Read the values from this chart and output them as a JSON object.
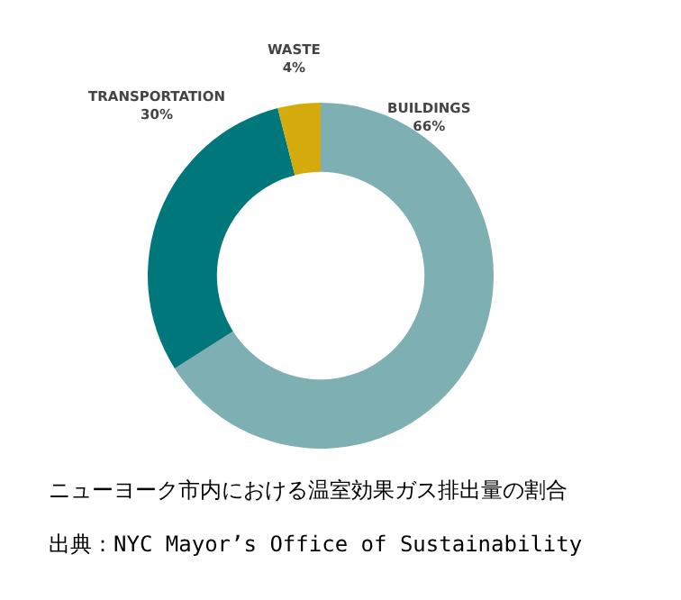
{
  "chart_data": {
    "type": "donut",
    "categories": [
      "BUILDINGS",
      "TRANSPORTATION",
      "WASTE"
    ],
    "values": [
      66,
      30,
      4
    ],
    "value_labels": [
      "66%",
      "30%",
      "4%"
    ],
    "colors": [
      "#7eafb3",
      "#00777a",
      "#d4aa0c"
    ],
    "annotations": [
      "ニューヨーク市内における温室効果ガス排出量の割合",
      "出典：NYC Mayor’s Office of Sustainability"
    ]
  }
}
